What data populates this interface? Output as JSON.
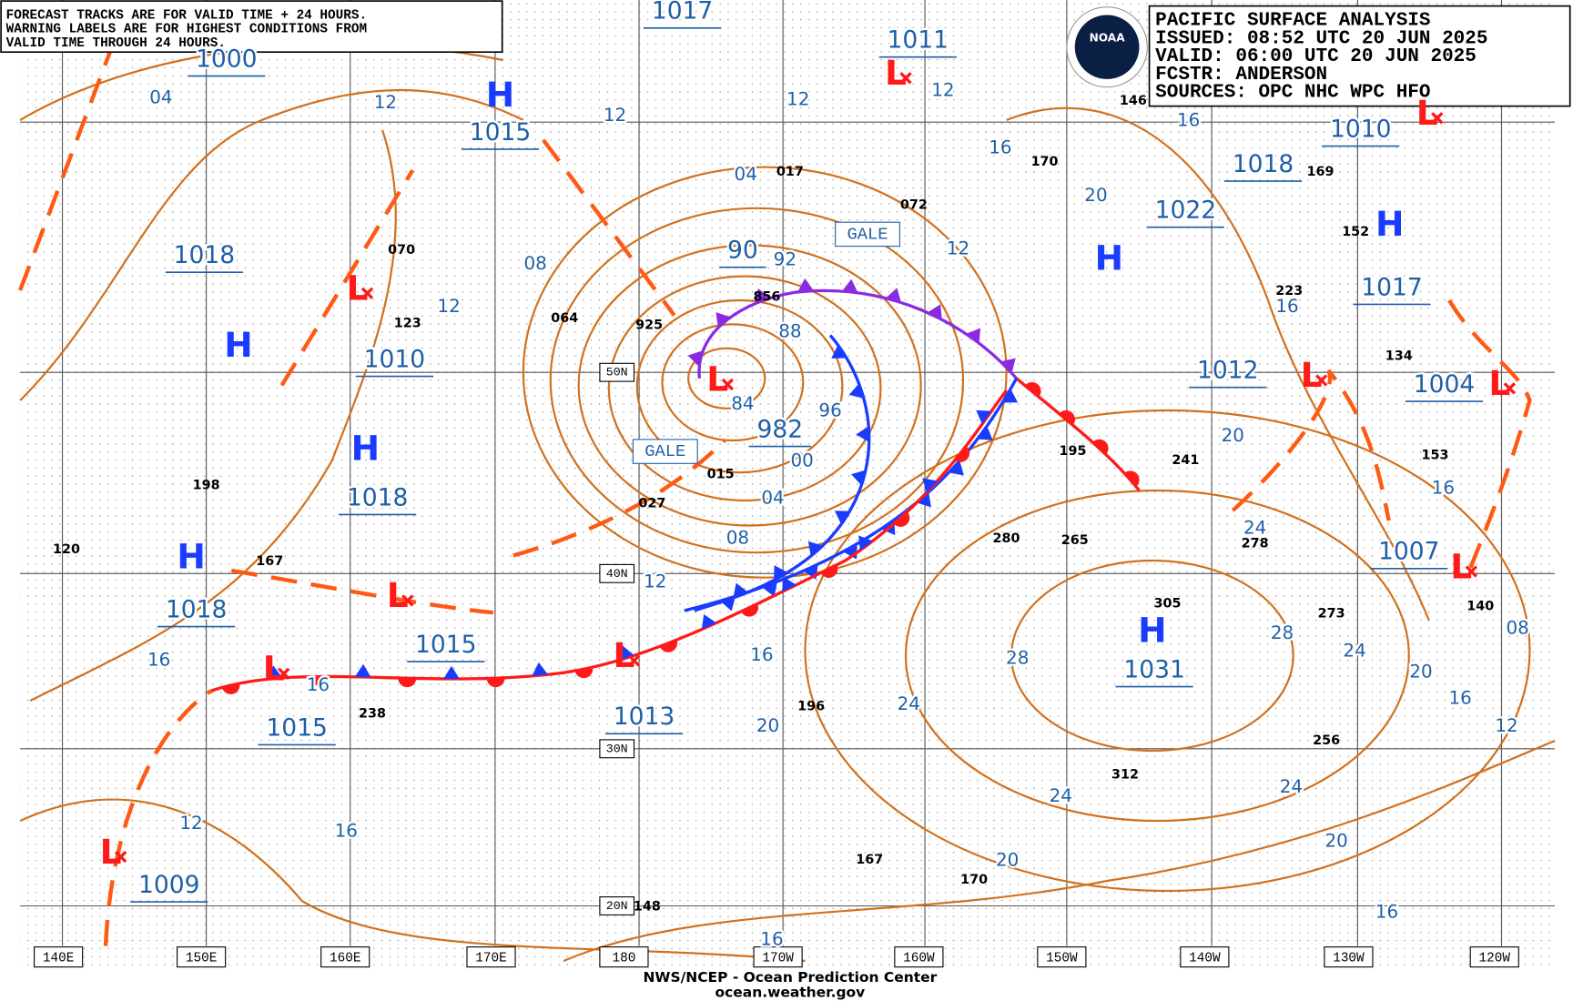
{
  "notice": [
    "FORECAST TRACKS ARE FOR VALID TIME + 24 HOURS.",
    "WARNING LABELS ARE FOR HIGHEST CONDITIONS FROM",
    "VALID TIME THROUGH 24 HOURS."
  ],
  "info": {
    "logo": "NOAA",
    "lines": [
      "PACIFIC SURFACE ANALYSIS",
      "ISSUED: 08:52 UTC 20 JUN 2025",
      "VALID:  06:00 UTC 20 JUN 2025",
      "FCSTR:  ANDERSON",
      "SOURCES: OPC NHC WPC HFO"
    ]
  },
  "longitudes": [
    "140E",
    "150E",
    "160E",
    "170E",
    "180",
    "170W",
    "160W",
    "150W",
    "140W",
    "130W",
    "120W"
  ],
  "latitudes": [
    "50N",
    "40N",
    "30N",
    "20N"
  ],
  "pressure_labels": [
    "1000",
    "1017",
    "1011",
    "1015",
    "1018",
    "1010",
    "90",
    "982",
    "1018",
    "1018",
    "1015",
    "1015",
    "1013",
    "1009",
    "1022",
    "1018",
    "1010",
    "1017",
    "1012",
    "1004",
    "1007",
    "1031"
  ],
  "highs": [
    "H",
    "H",
    "H",
    "H",
    "H",
    "H",
    "H"
  ],
  "lows": [
    "L",
    "L",
    "L",
    "L",
    "L",
    "L",
    "L",
    "L",
    "L",
    "L",
    "L"
  ],
  "warnings": [
    "GALE",
    "GALE"
  ],
  "isobar_labels": [
    "04",
    "12",
    "12",
    "12",
    "12",
    "04",
    "08",
    "92",
    "88",
    "84",
    "96",
    "00",
    "04",
    "08",
    "12",
    "12",
    "16",
    "16",
    "20",
    "16",
    "20",
    "24",
    "28",
    "24",
    "20",
    "16",
    "16",
    "12",
    "08",
    "12",
    "16",
    "16",
    "16",
    "20",
    "24",
    "28",
    "24",
    "20",
    "20",
    "24",
    "16",
    "16",
    "16",
    "12"
  ],
  "stations": [
    "070",
    "123",
    "064",
    "925",
    "856",
    "017",
    "072",
    "146",
    "170",
    "169",
    "152",
    "223",
    "134",
    "153",
    "241",
    "195",
    "015",
    "027",
    "198",
    "120",
    "167",
    "280",
    "265",
    "278",
    "305",
    "273",
    "140",
    "238",
    "196",
    "312",
    "256",
    "167",
    "170",
    "148"
  ],
  "footer": [
    "NWS/NCEP - Ocean Prediction Center",
    "ocean.weather.gov"
  ]
}
